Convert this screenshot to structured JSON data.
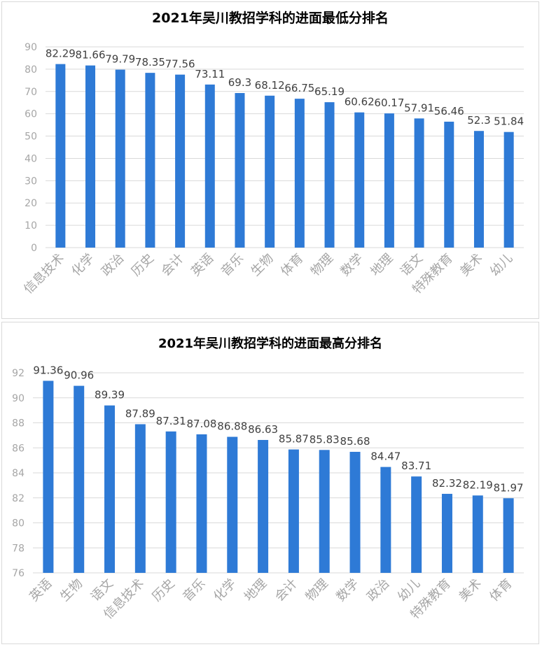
{
  "colors": {
    "bar": "#2e7ad6",
    "grid": "#d9d9d9",
    "axis_text": "#a6a6a6",
    "label_text": "#404040"
  },
  "chart_data": [
    {
      "type": "bar",
      "title": "2021年吴川教招学科的进面最低分排名",
      "categories": [
        "信息技术",
        "化学",
        "政治",
        "历史",
        "会计",
        "英语",
        "音乐",
        "生物",
        "体育",
        "物理",
        "数学",
        "地理",
        "语文",
        "特殊教育",
        "美术",
        "幼儿"
      ],
      "values": [
        82.29,
        81.66,
        79.79,
        78.35,
        77.56,
        73.11,
        69.3,
        68.12,
        66.75,
        65.19,
        60.62,
        60.17,
        57.91,
        56.46,
        52.3,
        51.84
      ],
      "value_labels": [
        "82.29",
        "81.66",
        "79.79",
        "78.35",
        "77.56",
        "73.11",
        "69.3",
        "68.12",
        "66.75",
        "65.19",
        "60.62",
        "60.17",
        "57.91",
        "56.46",
        "52.3",
        "51.84"
      ],
      "ylim": [
        0,
        90
      ],
      "yticks": [
        "0",
        "10",
        "20",
        "30",
        "40",
        "50",
        "60",
        "70",
        "80",
        "90"
      ],
      "grid": true,
      "legend": "none"
    },
    {
      "type": "bar",
      "title": "2021年吴川教招学科的进面最高分排名",
      "categories": [
        "英语",
        "生物",
        "语文",
        "信息技术",
        "历史",
        "音乐",
        "化学",
        "地理",
        "会计",
        "物理",
        "数学",
        "政治",
        "幼儿",
        "特殊教育",
        "美术",
        "体育"
      ],
      "values": [
        91.36,
        90.96,
        89.39,
        87.89,
        87.31,
        87.08,
        86.88,
        86.63,
        85.87,
        85.83,
        85.68,
        84.47,
        83.71,
        82.32,
        82.19,
        81.97
      ],
      "value_labels": [
        "91.36",
        "90.96",
        "89.39",
        "87.89",
        "87.31",
        "87.08",
        "86.88",
        "86.63",
        "85.87",
        "85.83",
        "85.68",
        "84.47",
        "83.71",
        "82.32",
        "82.19",
        "81.97"
      ],
      "ylim": [
        76,
        92
      ],
      "yticks": [
        "76",
        "78",
        "80",
        "82",
        "84",
        "86",
        "88",
        "90",
        "92"
      ],
      "grid": true,
      "legend": "none"
    }
  ]
}
